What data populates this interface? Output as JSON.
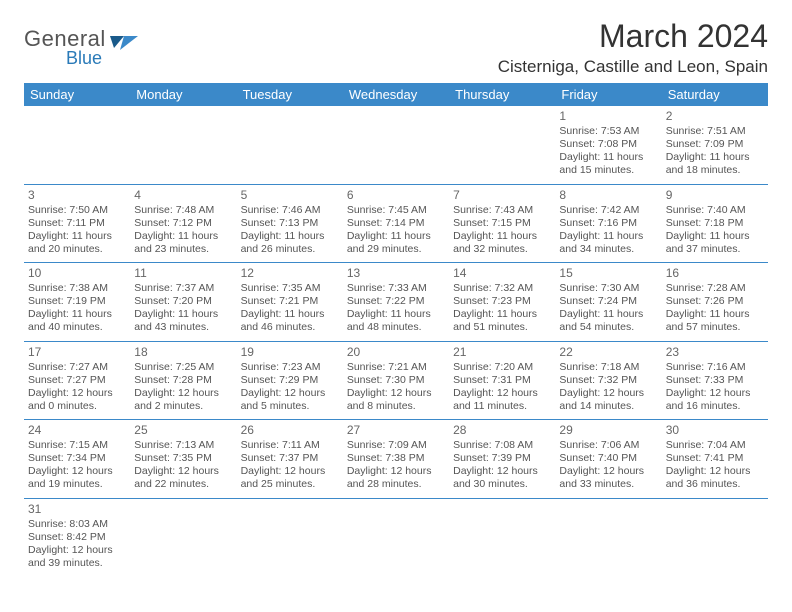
{
  "logo": {
    "general": "General",
    "blue": "Blue"
  },
  "title": "March 2024",
  "location": "Cisterniga, Castille and Leon, Spain",
  "colors": {
    "header_bg": "#3b89c9",
    "header_text": "#ffffff",
    "border": "#3b89c9",
    "logo_gray": "#555555",
    "logo_blue": "#2a7ab8",
    "text": "#555555"
  },
  "dayHeaders": [
    "Sunday",
    "Monday",
    "Tuesday",
    "Wednesday",
    "Thursday",
    "Friday",
    "Saturday"
  ],
  "weeks": [
    [
      null,
      null,
      null,
      null,
      null,
      {
        "d": "1",
        "sr": "7:53 AM",
        "ss": "7:08 PM",
        "dl": "11 hours and 15 minutes."
      },
      {
        "d": "2",
        "sr": "7:51 AM",
        "ss": "7:09 PM",
        "dl": "11 hours and 18 minutes."
      }
    ],
    [
      {
        "d": "3",
        "sr": "7:50 AM",
        "ss": "7:11 PM",
        "dl": "11 hours and 20 minutes."
      },
      {
        "d": "4",
        "sr": "7:48 AM",
        "ss": "7:12 PM",
        "dl": "11 hours and 23 minutes."
      },
      {
        "d": "5",
        "sr": "7:46 AM",
        "ss": "7:13 PM",
        "dl": "11 hours and 26 minutes."
      },
      {
        "d": "6",
        "sr": "7:45 AM",
        "ss": "7:14 PM",
        "dl": "11 hours and 29 minutes."
      },
      {
        "d": "7",
        "sr": "7:43 AM",
        "ss": "7:15 PM",
        "dl": "11 hours and 32 minutes."
      },
      {
        "d": "8",
        "sr": "7:42 AM",
        "ss": "7:16 PM",
        "dl": "11 hours and 34 minutes."
      },
      {
        "d": "9",
        "sr": "7:40 AM",
        "ss": "7:18 PM",
        "dl": "11 hours and 37 minutes."
      }
    ],
    [
      {
        "d": "10",
        "sr": "7:38 AM",
        "ss": "7:19 PM",
        "dl": "11 hours and 40 minutes."
      },
      {
        "d": "11",
        "sr": "7:37 AM",
        "ss": "7:20 PM",
        "dl": "11 hours and 43 minutes."
      },
      {
        "d": "12",
        "sr": "7:35 AM",
        "ss": "7:21 PM",
        "dl": "11 hours and 46 minutes."
      },
      {
        "d": "13",
        "sr": "7:33 AM",
        "ss": "7:22 PM",
        "dl": "11 hours and 48 minutes."
      },
      {
        "d": "14",
        "sr": "7:32 AM",
        "ss": "7:23 PM",
        "dl": "11 hours and 51 minutes."
      },
      {
        "d": "15",
        "sr": "7:30 AM",
        "ss": "7:24 PM",
        "dl": "11 hours and 54 minutes."
      },
      {
        "d": "16",
        "sr": "7:28 AM",
        "ss": "7:26 PM",
        "dl": "11 hours and 57 minutes."
      }
    ],
    [
      {
        "d": "17",
        "sr": "7:27 AM",
        "ss": "7:27 PM",
        "dl": "12 hours and 0 minutes."
      },
      {
        "d": "18",
        "sr": "7:25 AM",
        "ss": "7:28 PM",
        "dl": "12 hours and 2 minutes."
      },
      {
        "d": "19",
        "sr": "7:23 AM",
        "ss": "7:29 PM",
        "dl": "12 hours and 5 minutes."
      },
      {
        "d": "20",
        "sr": "7:21 AM",
        "ss": "7:30 PM",
        "dl": "12 hours and 8 minutes."
      },
      {
        "d": "21",
        "sr": "7:20 AM",
        "ss": "7:31 PM",
        "dl": "12 hours and 11 minutes."
      },
      {
        "d": "22",
        "sr": "7:18 AM",
        "ss": "7:32 PM",
        "dl": "12 hours and 14 minutes."
      },
      {
        "d": "23",
        "sr": "7:16 AM",
        "ss": "7:33 PM",
        "dl": "12 hours and 16 minutes."
      }
    ],
    [
      {
        "d": "24",
        "sr": "7:15 AM",
        "ss": "7:34 PM",
        "dl": "12 hours and 19 minutes."
      },
      {
        "d": "25",
        "sr": "7:13 AM",
        "ss": "7:35 PM",
        "dl": "12 hours and 22 minutes."
      },
      {
        "d": "26",
        "sr": "7:11 AM",
        "ss": "7:37 PM",
        "dl": "12 hours and 25 minutes."
      },
      {
        "d": "27",
        "sr": "7:09 AM",
        "ss": "7:38 PM",
        "dl": "12 hours and 28 minutes."
      },
      {
        "d": "28",
        "sr": "7:08 AM",
        "ss": "7:39 PM",
        "dl": "12 hours and 30 minutes."
      },
      {
        "d": "29",
        "sr": "7:06 AM",
        "ss": "7:40 PM",
        "dl": "12 hours and 33 minutes."
      },
      {
        "d": "30",
        "sr": "7:04 AM",
        "ss": "7:41 PM",
        "dl": "12 hours and 36 minutes."
      }
    ],
    [
      {
        "d": "31",
        "sr": "8:03 AM",
        "ss": "8:42 PM",
        "dl": "12 hours and 39 minutes."
      },
      null,
      null,
      null,
      null,
      null,
      null
    ]
  ],
  "labels": {
    "sunrise": "Sunrise:",
    "sunset": "Sunset:",
    "daylight": "Daylight:"
  }
}
